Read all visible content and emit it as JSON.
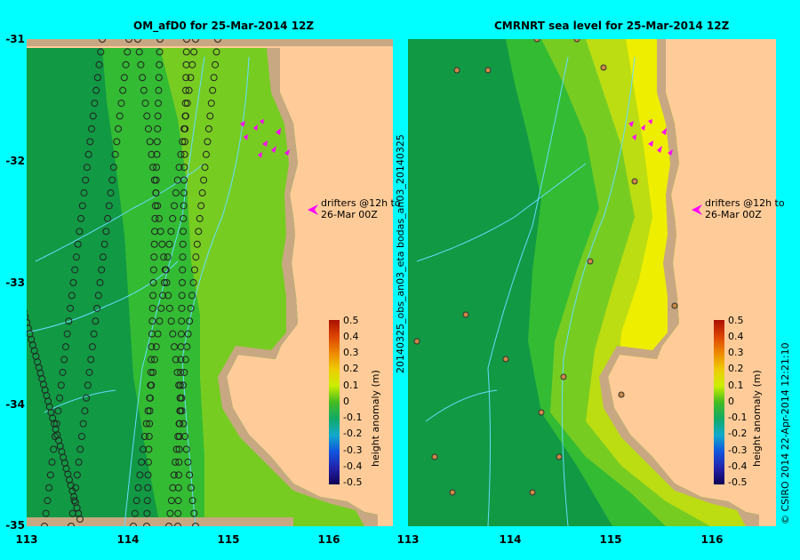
{
  "left_panel": {
    "title": "OM_afD0 for 25-Mar-2014 12Z",
    "y_ticks": [
      "-31",
      "-32",
      "-33",
      "-34",
      "-35"
    ],
    "x_ticks": [
      "113",
      "114",
      "115",
      "116"
    ],
    "drifter_label_1": "drifters @12h to",
    "drifter_label_2": "26-Mar 00Z",
    "colorbar_ticks": [
      "0.5",
      "0.4",
      "0.3",
      "0.2",
      "0.1",
      "0",
      "-0.1",
      "-0.2",
      "-0.3",
      "-0.4",
      "-0.5"
    ],
    "colorbar_label": "height anomaly (m)"
  },
  "right_panel": {
    "title": "CMRNRT sea level  for 25-Mar-2014 12Z",
    "x_ticks": [
      "113",
      "114",
      "115",
      "116"
    ],
    "drifter_label_1": "drifters @12h to",
    "drifter_label_2": "26-Mar 00Z",
    "colorbar_ticks": [
      "0.5",
      "0.4",
      "0.3",
      "0.2",
      "0.1",
      "0",
      "-0.1",
      "-0.2",
      "-0.3",
      "-0.4",
      "-0.5"
    ],
    "colorbar_label": "height anomaly (m)"
  },
  "side_labels": {
    "middle_vertical": "20140325_obs_an03_eta    bodas_an03_20140325",
    "right_vertical": "© CSIRO 2014    22-Apr-2014 12:21:10"
  },
  "map_extent": {
    "lon": [
      113,
      116.7
    ],
    "lat": [
      -35,
      -31
    ]
  },
  "colors": {
    "background": "#00ffff",
    "land": "#ffcc99",
    "shelf": "#c8a882",
    "dark_green": "#119944",
    "mid_green": "#33bb33",
    "light_green": "#77cc22",
    "yellow_green": "#bbdd11",
    "yellow": "#eeee00",
    "drifter_marker": "#ff00ff"
  }
}
